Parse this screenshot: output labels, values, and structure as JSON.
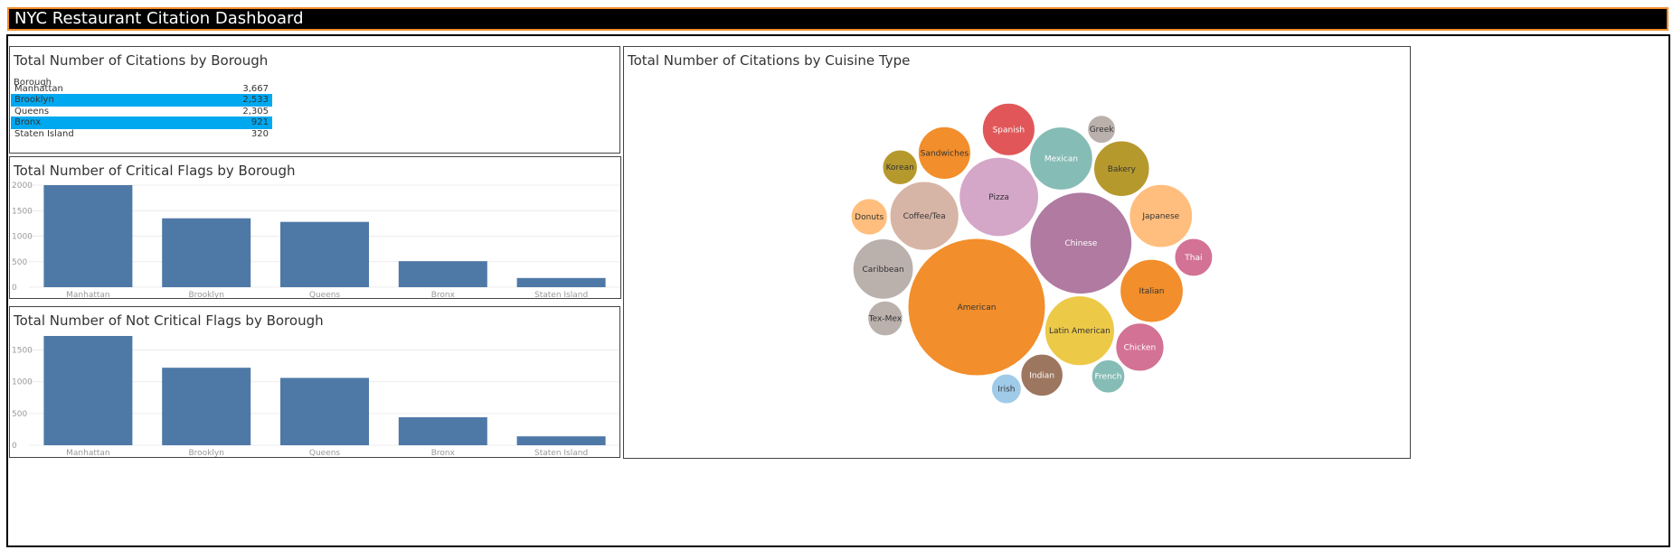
{
  "dashboard_title": "NYC Restaurant Citation Dashboard",
  "table_panel": {
    "title": "Total Number of Citations by Borough",
    "column_header": "Borough",
    "rows": [
      {
        "borough": "Manhattan",
        "value": "3,667"
      },
      {
        "borough": "Brooklyn",
        "value": "2,533"
      },
      {
        "borough": "Queens",
        "value": "2,305"
      },
      {
        "borough": "Bronx",
        "value": "921"
      },
      {
        "borough": "Staten Island",
        "value": "320"
      }
    ]
  },
  "colors": {
    "bar": "#4e79a7",
    "highlight_row": "#00a8f0",
    "title_border": "#f28e2b"
  },
  "chart_data": [
    {
      "type": "bar",
      "title": "Total Number of Critical Flags by Borough",
      "categories": [
        "Manhattan",
        "Brooklyn",
        "Queens",
        "Bronx",
        "Staten Island"
      ],
      "values": [
        2000,
        1350,
        1280,
        510,
        180
      ],
      "ylim": [
        0,
        2000
      ],
      "yticks": [
        0,
        500,
        1000,
        1500,
        2000
      ],
      "grid": true
    },
    {
      "type": "bar",
      "title": "Total Number of Not Critical Flags by Borough",
      "categories": [
        "Manhattan",
        "Brooklyn",
        "Queens",
        "Bronx",
        "Staten Island"
      ],
      "values": [
        1720,
        1220,
        1060,
        440,
        140
      ],
      "ylim": [
        0,
        1720
      ],
      "yticks": [
        0,
        500,
        1000,
        1500
      ],
      "grid": true
    },
    {
      "type": "bubble",
      "title": "Total Number of Citations by Cuisine Type",
      "bubbles": [
        {
          "label": "American",
          "value": 1710,
          "color": "#f28e2b"
        },
        {
          "label": "Chinese",
          "value": 940,
          "color": "#b07aa1"
        },
        {
          "label": "Pizza",
          "value": 570,
          "color": "#d4a6c8"
        },
        {
          "label": "Coffee/Tea",
          "value": 430,
          "color": "#d7b5a6"
        },
        {
          "label": "Latin American",
          "value": 440,
          "color": "#edc948"
        },
        {
          "label": "Mexican",
          "value": 360,
          "color": "#86bcb6"
        },
        {
          "label": "Caribbean",
          "value": 330,
          "color": "#bab0ac"
        },
        {
          "label": "Italian",
          "value": 360,
          "color": "#f28e2b"
        },
        {
          "label": "Japanese",
          "value": 360,
          "color": "#ffbe7d"
        },
        {
          "label": "Sandwiches",
          "value": 250,
          "color": "#f28e2b"
        },
        {
          "label": "Bakery",
          "value": 280,
          "color": "#b6992d"
        },
        {
          "label": "Spanish",
          "value": 250,
          "color": "#e15759"
        },
        {
          "label": "Chicken",
          "value": 210,
          "color": "#d37295"
        },
        {
          "label": "Indian",
          "value": 160,
          "color": "#9d7660"
        },
        {
          "label": "Thai",
          "value": 130,
          "color": "#d37295"
        },
        {
          "label": "Tex-Mex",
          "value": 110,
          "color": "#bab0ac"
        },
        {
          "label": "French",
          "value": 100,
          "color": "#86bcb6"
        },
        {
          "label": "Donuts",
          "value": 120,
          "color": "#ffbe7d"
        },
        {
          "label": "Irish",
          "value": 80,
          "color": "#a0cbe8"
        },
        {
          "label": "Korean",
          "value": 110,
          "color": "#b6992d"
        },
        {
          "label": "Greek",
          "value": 70,
          "color": "#bab0ac"
        }
      ]
    }
  ]
}
